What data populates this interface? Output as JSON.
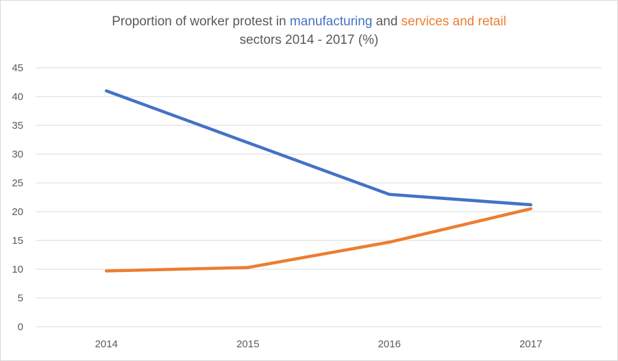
{
  "chart_data": {
    "type": "line",
    "title": {
      "part1": "Proportion of worker protest in ",
      "part2": "manufacturing",
      "part3": " and ",
      "part4": "services and retail",
      "part5": "sectors 2014 - 2017 (%)"
    },
    "categories": [
      "2014",
      "2015",
      "2016",
      "2017"
    ],
    "series": [
      {
        "values": [
          41,
          32,
          23,
          21.2
        ],
        "color": "#4472c4"
      },
      {
        "values": [
          9.7,
          10.3,
          14.7,
          20.5
        ],
        "color": "#ed7d31"
      }
    ],
    "ylim": [
      0,
      45
    ],
    "yticks": [
      "0",
      "5",
      "10",
      "15",
      "20",
      "25",
      "30",
      "35",
      "40",
      "45"
    ],
    "grid": true,
    "legend": "none"
  }
}
